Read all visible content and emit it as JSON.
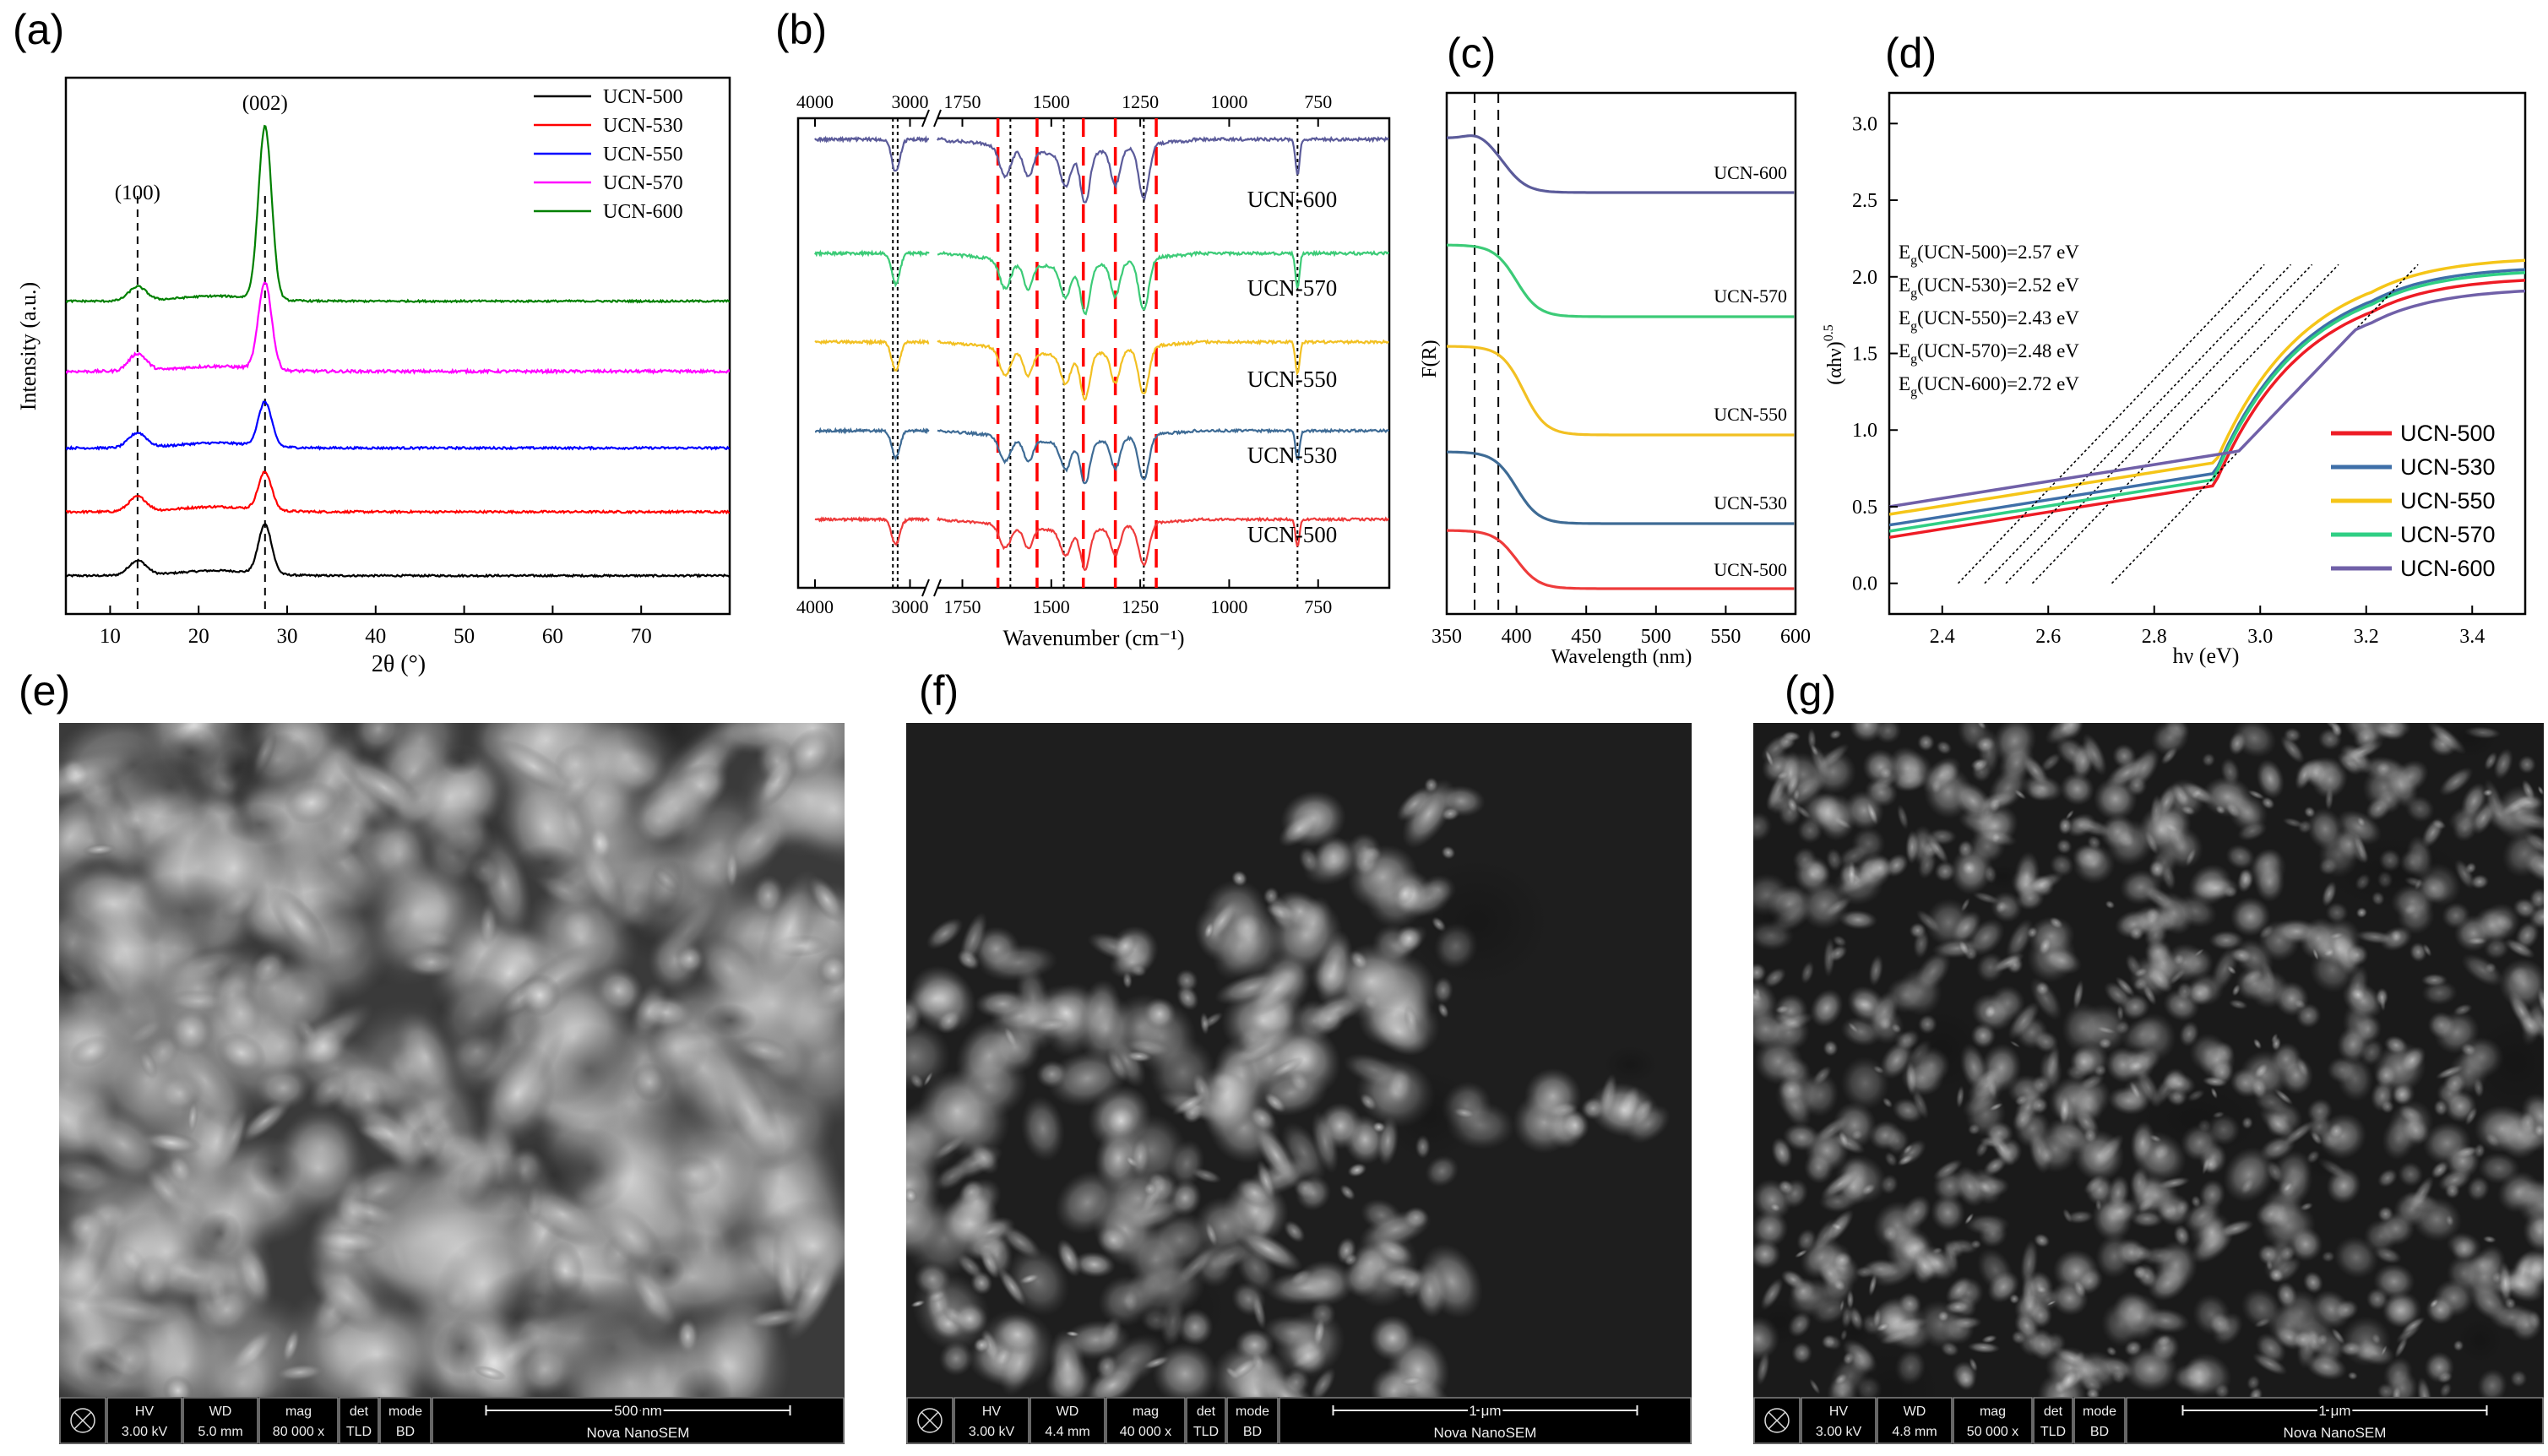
{
  "panels": {
    "a": {
      "label": "(a)"
    },
    "b": {
      "label": "(b)"
    },
    "c": {
      "label": "(c)"
    },
    "d": {
      "label": "(d)"
    },
    "e": {
      "label": "(e)"
    },
    "f": {
      "label": "(f)"
    },
    "g": {
      "label": "(g)"
    }
  },
  "chart_data": [
    {
      "id": "a",
      "type": "line",
      "xlabel": "2θ (°)",
      "ylabel": "Intensity (a.u.)",
      "xlim": [
        5,
        80
      ],
      "xticks": [
        10,
        20,
        30,
        40,
        50,
        60,
        70
      ],
      "annotations": [
        {
          "text": "(100)",
          "x": 13.1
        },
        {
          "text": "(002)",
          "x": 27.5
        }
      ],
      "reference_lines_x": [
        13.1,
        27.5
      ],
      "legend": "top-right",
      "series": [
        {
          "name": "UCN-500",
          "color": "#000000",
          "baseline": 0.0,
          "peak002_height": 0.77,
          "peak100_height": 0.23,
          "noise": 0.012
        },
        {
          "name": "UCN-530",
          "color": "#ff0000",
          "baseline": 1.0,
          "peak002_height": 0.59,
          "peak100_height": 0.23,
          "noise": 0.014
        },
        {
          "name": "UCN-550",
          "color": "#0000ff",
          "baseline": 2.0,
          "peak002_height": 0.69,
          "peak100_height": 0.23,
          "noise": 0.014
        },
        {
          "name": "UCN-570",
          "color": "#ff00ff",
          "baseline": 3.2,
          "peak002_height": 1.37,
          "peak100_height": 0.27,
          "noise": 0.018
        },
        {
          "name": "UCN-600",
          "color": "#008000",
          "baseline": 4.3,
          "peak002_height": 2.71,
          "peak100_height": 0.22,
          "noise": 0.012
        }
      ]
    },
    {
      "id": "b",
      "type": "line",
      "xlabel": "Wavenumber (cm⁻¹)",
      "x_reversed": true,
      "axis_break_between": [
        2800,
        1800
      ],
      "xticks": [
        4000,
        3000,
        1750,
        1500,
        1250,
        1000,
        750
      ],
      "red_dashed_lines_x": [
        1650,
        1540,
        1410,
        1320,
        1205
      ],
      "black_dotted_lines_x": [
        3180,
        3130,
        1615,
        1465,
        1240,
        808
      ],
      "bands": [
        {
          "x": 3150,
          "depth": 0.55,
          "width": 60
        },
        {
          "x": 1630,
          "depth": 0.5,
          "width": 22
        },
        {
          "x": 1565,
          "depth": 0.45,
          "width": 18
        },
        {
          "x": 1460,
          "depth": 0.55,
          "width": 20
        },
        {
          "x": 1405,
          "depth": 0.85,
          "width": 18
        },
        {
          "x": 1320,
          "depth": 0.6,
          "width": 18
        },
        {
          "x": 1240,
          "depth": 0.9,
          "width": 20
        },
        {
          "x": 808,
          "depth": 0.6,
          "width": 8
        }
      ],
      "series": [
        {
          "name": "UCN-600",
          "color": "#5b5b9a"
        },
        {
          "name": "UCN-570",
          "color": "#3ccb77"
        },
        {
          "name": "UCN-550",
          "color": "#f2c022"
        },
        {
          "name": "UCN-530",
          "color": "#3e6b95"
        },
        {
          "name": "UCN-500",
          "color": "#ee3b3b"
        }
      ]
    },
    {
      "id": "c",
      "type": "line",
      "xlabel": "Wavelength (nm)",
      "ylabel": "F(R)",
      "xlim": [
        350,
        600
      ],
      "xticks": [
        350,
        400,
        450,
        500,
        550,
        600
      ],
      "reference_lines_x": [
        370,
        387
      ],
      "series": [
        {
          "name": "UCN-600",
          "color": "#5b5b9a",
          "baseline": 0.0,
          "edge": 392
        },
        {
          "name": "UCN-570",
          "color": "#3ccb77",
          "baseline": 0.0,
          "edge": 400
        },
        {
          "name": "UCN-550",
          "color": "#f2c022",
          "baseline": 0.0,
          "edge": 405
        },
        {
          "name": "UCN-530",
          "color": "#3e6b95",
          "baseline": 0.0,
          "edge": 400
        },
        {
          "name": "UCN-500",
          "color": "#ee3b3b",
          "baseline": 0.0,
          "edge": 400
        }
      ]
    },
    {
      "id": "d",
      "type": "line",
      "xlabel": "hν (eV)",
      "ylabel": "(αhν)",
      "ylabel_sup": "0.5",
      "xlim": [
        2.3,
        3.5
      ],
      "ylim": [
        -0.2,
        3.2
      ],
      "xticks": [
        "2.4",
        "2.6",
        "2.8",
        "3.0",
        "3.2",
        "3.4"
      ],
      "yticks": [
        "0.0",
        "0.5",
        "1.0",
        "1.5",
        "2.0",
        "2.5",
        "3.0"
      ],
      "legend": "bottom-right",
      "bandgap_text": [
        {
          "pre": "E",
          "sub": "g",
          "post": "(UCN-500)=2.57 eV"
        },
        {
          "pre": "E",
          "sub": "g",
          "post": "(UCN-530)=2.52 eV"
        },
        {
          "pre": "E",
          "sub": "g",
          "post": "(UCN-550)=2.43 eV"
        },
        {
          "pre": "E",
          "sub": "g",
          "post": "(UCN-570)=2.48 eV"
        },
        {
          "pre": "E",
          "sub": "g",
          "post": "(UCN-600)=2.72 eV"
        }
      ],
      "series": [
        {
          "name": "UCN-500",
          "color": "#ee1c25",
          "eg": 2.57,
          "low": 0.3,
          "high": 2.0
        },
        {
          "name": "UCN-530",
          "color": "#3e6fa8",
          "eg": 2.52,
          "low": 0.38,
          "high": 2.07
        },
        {
          "name": "UCN-550",
          "color": "#f5c518",
          "eg": 2.43,
          "low": 0.45,
          "high": 2.13
        },
        {
          "name": "UCN-570",
          "color": "#2fcf84",
          "eg": 2.48,
          "low": 0.34,
          "high": 2.05
        },
        {
          "name": "UCN-600",
          "color": "#7060a8",
          "eg": 2.72,
          "low": 0.5,
          "high": 1.93
        }
      ]
    }
  ],
  "sem": [
    {
      "id": "e",
      "hv": "3.00 kV",
      "wd": "5.0 mm",
      "mag": "80 000 x",
      "det": "TLD",
      "mode": "BD",
      "scale": "500 nm",
      "brand": "Nova NanoSEM"
    },
    {
      "id": "f",
      "hv": "3.00 kV",
      "wd": "4.4 mm",
      "mag": "40 000 x",
      "det": "TLD",
      "mode": "BD",
      "scale": "1 μm",
      "brand": "Nova NanoSEM"
    },
    {
      "id": "g",
      "hv": "3.00 kV",
      "wd": "4.8 mm",
      "mag": "50 000 x",
      "det": "TLD",
      "mode": "BD",
      "scale": "1 μm",
      "brand": "Nova NanoSEM"
    }
  ],
  "sem_headers": {
    "hv": "HV",
    "wd": "WD",
    "mag": "mag",
    "det": "det",
    "mode": "mode"
  }
}
